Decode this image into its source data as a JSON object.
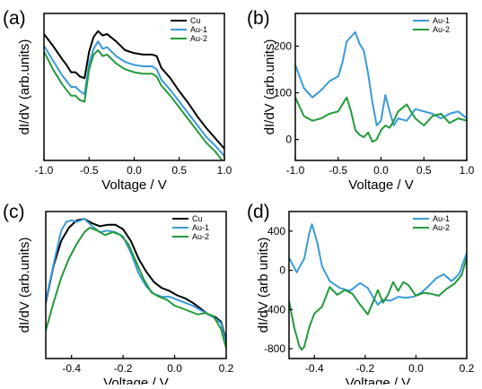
{
  "colors": {
    "cu": "#000000",
    "au1": "#3a9ad9",
    "au2": "#239a3b"
  },
  "chart_data": [
    {
      "panel_label": "(a)",
      "type": "line",
      "xlabel": "Voltage / V",
      "ylabel": "dI/dV (arb.units)",
      "xlim": [
        -1.0,
        1.0
      ],
      "ylim": [
        0,
        10
      ],
      "xticks": [
        -1.0,
        -0.5,
        0.0,
        0.5,
        1.0
      ],
      "xtick_labels": [
        "-1.0",
        "-0.5",
        "0.0",
        "0.5",
        "1.0"
      ],
      "yticks": [],
      "ytick_labels": [],
      "legend": "top-right",
      "series": [
        {
          "name": "Cu",
          "color": "#000000",
          "x": [
            -1.0,
            -0.9,
            -0.8,
            -0.75,
            -0.7,
            -0.65,
            -0.6,
            -0.55,
            -0.5,
            -0.45,
            -0.4,
            -0.35,
            -0.3,
            -0.2,
            -0.1,
            0.0,
            0.1,
            0.2,
            0.25,
            0.3,
            0.4,
            0.5,
            0.6,
            0.7,
            0.8,
            0.9,
            1.0
          ],
          "y": [
            8.6,
            7.8,
            6.9,
            6.5,
            6.0,
            6.0,
            5.7,
            5.6,
            7.4,
            8.4,
            8.8,
            8.5,
            8.6,
            8.1,
            7.5,
            7.3,
            7.2,
            7.2,
            7.1,
            6.3,
            5.6,
            4.7,
            3.9,
            3.0,
            2.2,
            1.5,
            0.8
          ]
        },
        {
          "name": "Au-1",
          "color": "#3a9ad9",
          "x": [
            -1.0,
            -0.9,
            -0.8,
            -0.75,
            -0.7,
            -0.65,
            -0.6,
            -0.55,
            -0.5,
            -0.45,
            -0.4,
            -0.35,
            -0.3,
            -0.2,
            -0.1,
            0.0,
            0.1,
            0.2,
            0.25,
            0.3,
            0.4,
            0.5,
            0.6,
            0.7,
            0.8,
            0.9,
            1.0
          ],
          "y": [
            7.8,
            6.8,
            5.8,
            5.4,
            5.0,
            5.0,
            4.7,
            4.5,
            6.6,
            7.6,
            8.1,
            7.6,
            7.7,
            7.1,
            6.7,
            6.5,
            6.4,
            6.4,
            6.2,
            5.5,
            4.8,
            4.0,
            3.2,
            2.4,
            1.6,
            1.0,
            0.3
          ]
        },
        {
          "name": "Au-2",
          "color": "#239a3b",
          "x": [
            -1.0,
            -0.9,
            -0.8,
            -0.75,
            -0.7,
            -0.65,
            -0.6,
            -0.55,
            -0.5,
            -0.45,
            -0.4,
            -0.35,
            -0.3,
            -0.2,
            -0.1,
            0.0,
            0.1,
            0.2,
            0.25,
            0.3,
            0.4,
            0.5,
            0.6,
            0.7,
            0.8,
            0.9,
            1.0
          ],
          "y": [
            7.4,
            6.2,
            5.2,
            4.8,
            4.4,
            4.4,
            4.1,
            4.0,
            6.2,
            7.2,
            7.5,
            7.1,
            7.2,
            6.6,
            6.2,
            6.0,
            5.9,
            5.9,
            5.7,
            5.1,
            4.4,
            3.6,
            2.8,
            2.0,
            1.2,
            0.6,
            -0.2
          ]
        }
      ]
    },
    {
      "panel_label": "(b)",
      "type": "line",
      "xlabel": "Voltage / V",
      "ylabel": "dI/dV (arb.units)",
      "xlim": [
        -1.0,
        1.0
      ],
      "ylim": [
        -45,
        270
      ],
      "xticks": [
        -1.0,
        -0.5,
        0.0,
        0.5,
        1.0
      ],
      "xtick_labels": [
        "-1.0",
        "-0.5",
        "0.0",
        "0.5",
        "1.0"
      ],
      "yticks": [
        0,
        100,
        200
      ],
      "ytick_labels": [
        "0",
        "100",
        "200"
      ],
      "legend": "top-right",
      "series": [
        {
          "name": "Au-1",
          "color": "#3a9ad9",
          "x": [
            -1.0,
            -0.9,
            -0.8,
            -0.7,
            -0.6,
            -0.5,
            -0.45,
            -0.4,
            -0.35,
            -0.3,
            -0.25,
            -0.2,
            -0.15,
            -0.1,
            -0.05,
            0.0,
            0.05,
            0.1,
            0.15,
            0.2,
            0.3,
            0.4,
            0.5,
            0.6,
            0.7,
            0.8,
            0.9,
            1.0
          ],
          "y": [
            160,
            110,
            90,
            105,
            125,
            135,
            165,
            210,
            220,
            230,
            205,
            190,
            140,
            80,
            30,
            40,
            95,
            60,
            30,
            45,
            40,
            65,
            60,
            55,
            45,
            55,
            60,
            45
          ]
        },
        {
          "name": "Au-2",
          "color": "#239a3b",
          "x": [
            -1.0,
            -0.9,
            -0.8,
            -0.7,
            -0.6,
            -0.5,
            -0.45,
            -0.4,
            -0.35,
            -0.3,
            -0.25,
            -0.2,
            -0.15,
            -0.1,
            -0.05,
            0.0,
            0.05,
            0.1,
            0.15,
            0.2,
            0.3,
            0.4,
            0.5,
            0.6,
            0.7,
            0.8,
            0.9,
            1.0
          ],
          "y": [
            90,
            50,
            40,
            45,
            55,
            60,
            75,
            90,
            60,
            20,
            10,
            5,
            15,
            -5,
            0,
            20,
            30,
            25,
            40,
            60,
            75,
            45,
            30,
            50,
            55,
            35,
            45,
            40
          ]
        }
      ]
    },
    {
      "panel_label": "(c)",
      "type": "line",
      "xlabel": "Voltage / V",
      "ylabel": "dI/dV (arb.units)",
      "xlim": [
        -0.5,
        0.2
      ],
      "ylim": [
        0,
        10
      ],
      "xticks": [
        -0.4,
        -0.2,
        0.0,
        0.2
      ],
      "xtick_labels": [
        "-0.4",
        "-0.2",
        "0.0",
        "0.2"
      ],
      "yticks": [],
      "ytick_labels": [],
      "legend": "top-right",
      "series": [
        {
          "name": "Cu",
          "color": "#000000",
          "x": [
            -0.5,
            -0.47,
            -0.44,
            -0.41,
            -0.38,
            -0.35,
            -0.32,
            -0.29,
            -0.26,
            -0.23,
            -0.2,
            -0.17,
            -0.14,
            -0.11,
            -0.08,
            -0.05,
            -0.02,
            0.01,
            0.04,
            0.07,
            0.1,
            0.13,
            0.16,
            0.18,
            0.2
          ],
          "y": [
            3.8,
            6.3,
            8.0,
            8.9,
            9.4,
            9.5,
            9.2,
            9.0,
            9.1,
            9.1,
            8.8,
            8.0,
            6.8,
            5.9,
            5.2,
            4.8,
            4.6,
            4.3,
            4.1,
            3.8,
            3.4,
            3.0,
            2.8,
            2.5,
            1.2
          ]
        },
        {
          "name": "Au-1",
          "color": "#3a9ad9",
          "x": [
            -0.5,
            -0.47,
            -0.44,
            -0.42,
            -0.4,
            -0.38,
            -0.35,
            -0.32,
            -0.29,
            -0.26,
            -0.23,
            -0.2,
            -0.17,
            -0.14,
            -0.11,
            -0.08,
            -0.05,
            -0.02,
            0.01,
            0.04,
            0.07,
            0.1,
            0.13,
            0.16,
            0.18,
            0.2
          ],
          "y": [
            3.9,
            6.4,
            8.7,
            9.3,
            9.4,
            9.3,
            9.5,
            9.0,
            8.6,
            8.7,
            8.6,
            8.3,
            7.2,
            5.8,
            4.9,
            4.4,
            4.2,
            4.2,
            4.0,
            3.8,
            3.6,
            3.3,
            3.0,
            2.7,
            2.4,
            1.0
          ]
        },
        {
          "name": "Au-2",
          "color": "#239a3b",
          "x": [
            -0.5,
            -0.47,
            -0.44,
            -0.41,
            -0.38,
            -0.35,
            -0.33,
            -0.3,
            -0.27,
            -0.24,
            -0.21,
            -0.18,
            -0.15,
            -0.12,
            -0.09,
            -0.06,
            -0.03,
            0.0,
            0.03,
            0.06,
            0.09,
            0.12,
            0.15,
            0.18,
            0.2
          ],
          "y": [
            1.9,
            3.8,
            5.5,
            6.8,
            7.8,
            8.6,
            8.9,
            8.7,
            8.4,
            8.6,
            8.4,
            7.8,
            6.6,
            5.4,
            4.5,
            4.2,
            4.0,
            3.6,
            3.4,
            3.2,
            3.0,
            3.1,
            2.9,
            2.0,
            0.7
          ]
        }
      ]
    },
    {
      "panel_label": "(d)",
      "type": "line",
      "xlabel": "Voltage / V",
      "ylabel": "dI/dV (arb units)",
      "xlim": [
        -0.5,
        0.2
      ],
      "ylim": [
        -900,
        600
      ],
      "xticks": [
        -0.4,
        -0.2,
        0.0,
        0.2
      ],
      "xtick_labels": [
        "-0.4",
        "-0.2",
        "0.0",
        "0.2"
      ],
      "yticks": [
        -800,
        -400,
        0,
        400
      ],
      "ytick_labels": [
        "-800",
        "-400",
        "0",
        "400"
      ],
      "legend": "top-right",
      "series": [
        {
          "name": "Au-1",
          "color": "#3a9ad9",
          "x": [
            -0.5,
            -0.47,
            -0.44,
            -0.42,
            -0.41,
            -0.39,
            -0.37,
            -0.34,
            -0.3,
            -0.26,
            -0.22,
            -0.19,
            -0.17,
            -0.15,
            -0.13,
            -0.1,
            -0.07,
            -0.04,
            -0.01,
            0.02,
            0.05,
            0.08,
            0.11,
            0.14,
            0.17,
            0.2
          ],
          "y": [
            130,
            -20,
            120,
            380,
            470,
            300,
            40,
            -110,
            -180,
            -210,
            -130,
            -180,
            -270,
            -350,
            -300,
            -310,
            -270,
            -280,
            -270,
            -230,
            -160,
            -80,
            -40,
            -110,
            -40,
            180
          ]
        },
        {
          "name": "Au-2",
          "color": "#239a3b",
          "x": [
            -0.5,
            -0.48,
            -0.46,
            -0.45,
            -0.44,
            -0.42,
            -0.4,
            -0.37,
            -0.34,
            -0.31,
            -0.28,
            -0.25,
            -0.22,
            -0.19,
            -0.17,
            -0.15,
            -0.13,
            -0.11,
            -0.09,
            -0.07,
            -0.05,
            -0.03,
            0.0,
            0.03,
            0.06,
            0.09,
            0.12,
            0.15,
            0.18,
            0.2
          ],
          "y": [
            -310,
            -580,
            -770,
            -810,
            -780,
            -580,
            -440,
            -370,
            -170,
            -250,
            -200,
            -240,
            -350,
            -450,
            -330,
            -200,
            -330,
            -250,
            -120,
            -210,
            -120,
            -150,
            -260,
            -230,
            -240,
            -260,
            -190,
            -140,
            -50,
            130
          ]
        }
      ]
    }
  ]
}
